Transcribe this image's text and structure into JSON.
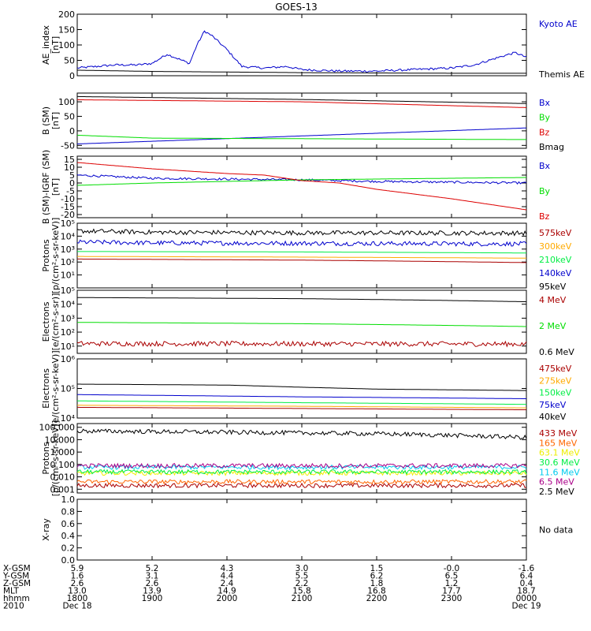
{
  "title": "GOES-13",
  "colors": {
    "black": "#000000",
    "blue": "#0000cc",
    "green": "#00dd00",
    "red": "#dd0000",
    "darkred": "#aa0000",
    "orange": "#ffaa00",
    "brightgreen": "#00ee44",
    "cyan": "#00ccee",
    "purple": "#aa0088",
    "yellow": "#eeee00"
  },
  "chart_data": [
    {
      "id": "ae",
      "type": "line",
      "ylabel": "AE_index [nT]",
      "ylim": [
        0,
        200
      ],
      "scale": "linear",
      "yticks": [
        0,
        50,
        100,
        150,
        200
      ],
      "ytick_labels": [
        "0",
        "50",
        "100",
        "150",
        "200"
      ],
      "series": [
        {
          "name": "Kyoto AE",
          "color": "#0000cc",
          "x": [
            18.0,
            18.5,
            18.8,
            19.0,
            19.2,
            19.5,
            19.6,
            19.7,
            19.8,
            20.0,
            20.2,
            20.5,
            20.8,
            21.0,
            21.5,
            22.0,
            22.5,
            23.0,
            23.3,
            23.5,
            23.7,
            23.85,
            24.0
          ],
          "values": [
            25,
            35,
            35,
            40,
            70,
            40,
            100,
            145,
            130,
            85,
            30,
            25,
            30,
            20,
            15,
            15,
            20,
            25,
            35,
            50,
            65,
            75,
            60
          ],
          "noisy": true
        },
        {
          "name": "Themis AE",
          "color": "#000000",
          "x": [
            18.0,
            19.0,
            20.0,
            21.0,
            22.0,
            23.0,
            24.0
          ],
          "values": [
            18,
            14,
            12,
            10,
            9,
            8,
            8
          ],
          "noisy": false
        }
      ]
    },
    {
      "id": "bsm",
      "type": "line",
      "ylabel": "B (SM) [nT]",
      "ylim": [
        -60,
        130
      ],
      "scale": "linear",
      "yticks": [
        -50,
        0,
        50,
        100
      ],
      "ytick_labels": [
        "-50",
        "0",
        "50",
        "100"
      ],
      "series": [
        {
          "name": "Bx",
          "color": "#0000cc",
          "x": [
            18.0,
            24.0
          ],
          "values": [
            -45,
            10
          ],
          "noisy": false
        },
        {
          "name": "By",
          "color": "#00dd00",
          "x": [
            18.0,
            19.0,
            24.0
          ],
          "values": [
            -15,
            -25,
            -30
          ],
          "noisy": false
        },
        {
          "name": "Bz",
          "color": "#dd0000",
          "x": [
            18.0,
            21.0,
            24.0
          ],
          "values": [
            107,
            100,
            80
          ],
          "noisy": false
        },
        {
          "name": "Bmag",
          "color": "#000000",
          "x": [
            18.0,
            21.0,
            24.0
          ],
          "values": [
            118,
            108,
            94
          ],
          "noisy": false
        }
      ]
    },
    {
      "id": "bigrf",
      "type": "line",
      "ylabel": "B (SM)-IGRF (SM) [nT]",
      "ylim": [
        -22,
        17
      ],
      "scale": "linear",
      "yticks": [
        -20,
        -15,
        -10,
        -5,
        0,
        5,
        10,
        15
      ],
      "ytick_labels": [
        "-20",
        "-15",
        "-10",
        "-5",
        "0",
        "5",
        "10",
        "15"
      ],
      "series": [
        {
          "name": "Bx",
          "color": "#0000cc",
          "x": [
            18.0,
            19.0,
            20.0,
            21.0,
            22.0,
            23.0,
            24.0
          ],
          "values": [
            5,
            3,
            2.5,
            2,
            1,
            0.5,
            0
          ],
          "noisy": true
        },
        {
          "name": "By",
          "color": "#00dd00",
          "x": [
            18.0,
            19.0,
            20.0,
            21.0,
            22.0,
            23.0,
            24.0
          ],
          "values": [
            -1.5,
            0,
            1,
            2,
            2.5,
            3,
            3.5
          ],
          "noisy": false
        },
        {
          "name": "Bz",
          "color": "#dd0000",
          "x": [
            18.0,
            19.0,
            20.0,
            20.5,
            21.0,
            21.5,
            22.0,
            23.0,
            24.0
          ],
          "values": [
            13,
            9,
            6,
            5,
            1.5,
            0,
            -4,
            -10,
            -17
          ],
          "noisy": false
        }
      ]
    },
    {
      "id": "protons",
      "type": "line",
      "ylabel": "Protons [p/(cm²-s-sr-keV)]",
      "ylim": [
        1,
        100000
      ],
      "scale": "log",
      "yticks": [
        10,
        100,
        1000,
        10000,
        100000
      ],
      "ytick_labels": [
        "10¹",
        "10²",
        "10³",
        "10⁴",
        "10⁵"
      ],
      "series": [
        {
          "name": "575keV",
          "color": "#aa0000",
          "x": [
            18.0,
            21.0,
            24.0
          ],
          "values": [
            170,
            140,
            90
          ],
          "noisy": false
        },
        {
          "name": "300keV",
          "color": "#ffaa00",
          "x": [
            18.0,
            21.0,
            24.0
          ],
          "values": [
            270,
            240,
            200
          ],
          "noisy": false
        },
        {
          "name": "210keV",
          "color": "#00ee44",
          "x": [
            18.0,
            21.0,
            24.0
          ],
          "values": [
            650,
            600,
            500
          ],
          "noisy": false
        },
        {
          "name": "140keV",
          "color": "#0000cc",
          "x": [
            18.0,
            19.0,
            21.0,
            24.0
          ],
          "values": [
            3500,
            3000,
            2800,
            2500
          ],
          "noisy": true
        },
        {
          "name": "95keV",
          "color": "#000000",
          "x": [
            18.0,
            19.0,
            21.0,
            24.0
          ],
          "values": [
            25000,
            20000,
            18000,
            17000
          ],
          "noisy": true
        }
      ]
    },
    {
      "id": "electrons_mev",
      "type": "line",
      "ylabel": "Electrons [e/(cm²-s-sr)]",
      "ylim": [
        3,
        100000
      ],
      "scale": "log",
      "yticks": [
        10,
        100,
        1000,
        10000,
        100000
      ],
      "ytick_labels": [
        "10¹",
        "10²",
        "10³",
        "10⁴",
        "10⁵"
      ],
      "series": [
        {
          "name": "4 MeV",
          "color": "#aa0000",
          "x": [
            18.0,
            24.0
          ],
          "values": [
            15,
            14
          ],
          "noisy": true
        },
        {
          "name": "2 MeV",
          "color": "#00dd00",
          "x": [
            18.0,
            21.0,
            24.0
          ],
          "values": [
            500,
            400,
            250
          ],
          "noisy": false
        },
        {
          "name": "0.6 MeV",
          "color": "#000000",
          "x": [
            18.0,
            21.0,
            24.0
          ],
          "values": [
            30000,
            25000,
            15000
          ],
          "noisy": false
        }
      ]
    },
    {
      "id": "electrons_kev",
      "type": "line",
      "ylabel": "Electrons [e/(cm²-s-sr-keV)]",
      "ylim": [
        10000,
        1000000
      ],
      "scale": "log",
      "yticks": [
        10000,
        100000,
        1000000
      ],
      "ytick_labels": [
        "10⁴",
        "10⁵",
        "10⁶"
      ],
      "series": [
        {
          "name": "475keV",
          "color": "#aa0000",
          "x": [
            18.0,
            21.0,
            24.0
          ],
          "values": [
            23000,
            21000,
            19000
          ],
          "noisy": false
        },
        {
          "name": "275keV",
          "color": "#ffaa00",
          "x": [
            18.0,
            21.0,
            24.0
          ],
          "values": [
            27000,
            25000,
            22000
          ],
          "noisy": false
        },
        {
          "name": "150keV",
          "color": "#00ee44",
          "x": [
            18.0,
            21.0,
            24.0
          ],
          "values": [
            38000,
            33000,
            29000
          ],
          "noisy": false
        },
        {
          "name": "75keV",
          "color": "#0000cc",
          "x": [
            18.0,
            21.0,
            24.0
          ],
          "values": [
            62000,
            52000,
            45000
          ],
          "noisy": false
        },
        {
          "name": "40keV",
          "color": "#000000",
          "x": [
            18.0,
            20.0,
            21.0,
            22.0,
            24.0
          ],
          "values": [
            140000,
            130000,
            110000,
            95000,
            85000
          ],
          "noisy": false
        }
      ]
    },
    {
      "id": "protons_mev",
      "type": "line",
      "ylabel": "Protons [p/(cm²-s-sr-keV)]",
      "ylim": [
        0.0005,
        200
      ],
      "scale": "log",
      "yticks": [
        0.001,
        0.01,
        0.1,
        1,
        10,
        100
      ],
      "ytick_labels": [
        "0.001",
        "0.010",
        "0.100",
        "1.000",
        "10.000",
        "100.000"
      ],
      "series": [
        {
          "name": "433 MeV",
          "color": "#aa0000",
          "x": [
            18.0,
            24.0
          ],
          "values": [
            0.002,
            0.002
          ],
          "noisy": true
        },
        {
          "name": "165 MeV",
          "color": "#ff6600",
          "x": [
            18.0,
            24.0
          ],
          "values": [
            0.004,
            0.004
          ],
          "noisy": true
        },
        {
          "name": "63.1 MeV",
          "color": "#eeee00",
          "x": [
            18.0,
            24.0
          ],
          "values": [
            0.02,
            0.02
          ],
          "noisy": true
        },
        {
          "name": "30.6 MeV",
          "color": "#00ee44",
          "x": [
            18.0,
            24.0
          ],
          "values": [
            0.025,
            0.025
          ],
          "noisy": true
        },
        {
          "name": "11.6 MeV",
          "color": "#00ccee",
          "x": [
            18.0,
            24.0
          ],
          "values": [
            0.06,
            0.06
          ],
          "noisy": true
        },
        {
          "name": "6.5 MeV",
          "color": "#aa0088",
          "x": [
            18.0,
            24.0
          ],
          "values": [
            0.08,
            0.08
          ],
          "noisy": true
        },
        {
          "name": "2.5 MeV",
          "color": "#000000",
          "x": [
            18.0,
            20.0,
            22.0,
            24.0
          ],
          "values": [
            50,
            40,
            30,
            15
          ],
          "noisy": true
        }
      ]
    },
    {
      "id": "xray",
      "type": "line",
      "ylabel": "X-ray",
      "ylim": [
        0,
        1
      ],
      "scale": "linear",
      "yticks": [
        0,
        0.2,
        0.4,
        0.6,
        0.8,
        1.0
      ],
      "ytick_labels": [
        "0.0",
        "0.2",
        "0.4",
        "0.6",
        "0.8",
        "1.0"
      ],
      "no_data_text": "No data",
      "series": []
    }
  ],
  "panel_labels": {
    "ae": [
      "AE_index",
      "[nT]"
    ],
    "bsm": [
      "B (SM)",
      "[nT]"
    ],
    "bigrf": [
      "B (SM)-IGRF (SM)",
      "[nT]"
    ],
    "protons": [
      "Protons",
      "[p/(cm²-s-sr-keV)]"
    ],
    "electrons_mev": [
      "Electrons",
      "[e/(cm²-s-sr)]"
    ],
    "electrons_kev": [
      "Electrons",
      "[e/(cm²-s-sr-keV)]"
    ],
    "protons_mev": [
      "Protons",
      "[p/(cm²-s-sr-keV)]"
    ],
    "xray": [
      "X-ray",
      ""
    ]
  },
  "x_axis": {
    "xlim": [
      18.0,
      24.0
    ],
    "ticks": [
      18,
      19,
      20,
      21,
      22,
      23,
      24
    ],
    "rows": [
      {
        "label": "X-GSM",
        "values": [
          "5.9",
          "5.2",
          "4.3",
          "3.0",
          "1.5",
          "-0.0",
          "-1.6"
        ]
      },
      {
        "label": "Y-GSM",
        "values": [
          "1.6",
          "3.1",
          "4.4",
          "5.5",
          "6.2",
          "6.5",
          "6.4"
        ]
      },
      {
        "label": "Z-GSM",
        "values": [
          "2.6",
          "2.6",
          "2.4",
          "2.2",
          "1.8",
          "1.2",
          "0.4"
        ]
      },
      {
        "label": "MLT",
        "values": [
          "13.0",
          "13.9",
          "14.9",
          "15.8",
          "16.8",
          "17.7",
          "18.7"
        ]
      },
      {
        "label": "hhmm",
        "values": [
          "1800",
          "1900",
          "2000",
          "2100",
          "2200",
          "2300",
          "0000"
        ]
      }
    ],
    "date_row": {
      "label": "2010",
      "start": "Dec 18",
      "end": "Dec 19"
    }
  }
}
